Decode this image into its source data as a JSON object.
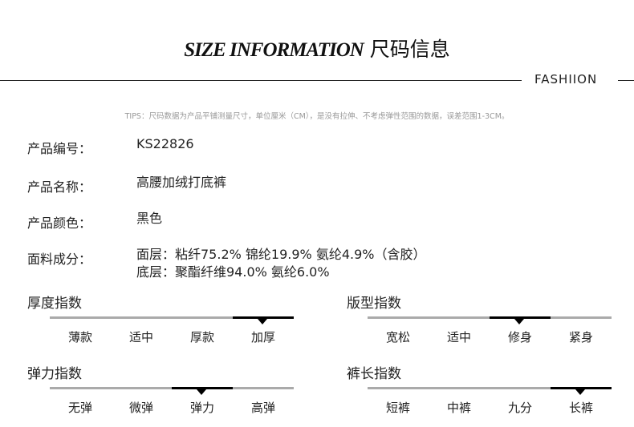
{
  "header": {
    "title_en": "SIZE INFORMATION",
    "title_cn": "尺码信息",
    "tag": "FASHIION"
  },
  "tips": "TIPS：尺码数据为产品平铺测量尺寸，单位厘米（CM），是没有拉伸、不考虑弹性范围的数据，误差范围1-3CM。",
  "info": [
    {
      "key": "产品编号：",
      "value": "KS22826"
    },
    {
      "key": "产品名称：",
      "value": "高腰加绒打底裤"
    },
    {
      "key": "产品颜色：",
      "value": "黑色"
    },
    {
      "key": "面料成分：",
      "value": "面层：粘纤75.2% 锦纶19.9% 氨纶4.9%（含胶）",
      "value2": "底层：聚酯纤维94.0% 氨纶6.0%"
    }
  ],
  "indices": [
    {
      "title": "厚度指数",
      "options": [
        "薄款",
        "适中",
        "厚款",
        "加厚"
      ],
      "selected": 3
    },
    {
      "title": "版型指数",
      "options": [
        "宽松",
        "适中",
        "修身",
        "紧身"
      ],
      "selected": 2
    },
    {
      "title": "弹力指数",
      "options": [
        "无弹",
        "微弹",
        "弹力",
        "高弹"
      ],
      "selected": 2
    },
    {
      "title": "裤长指数",
      "options": [
        "短裤",
        "中裤",
        "九分",
        "长裤"
      ],
      "selected": 3
    }
  ]
}
